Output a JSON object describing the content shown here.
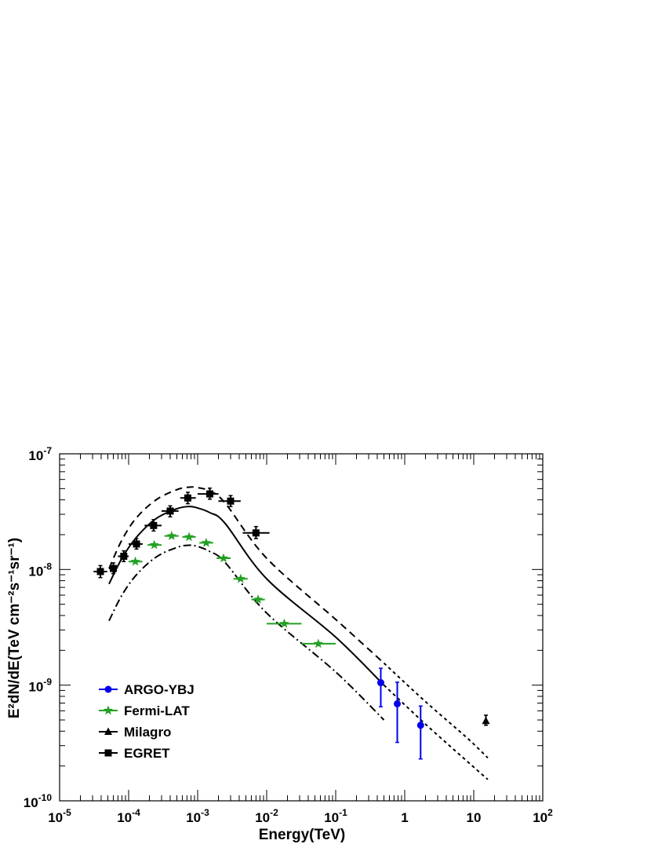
{
  "chart_data": {
    "type": "scatter",
    "xlabel": "Energy(TeV)",
    "ylabel": "E²dN/dE(TeV cm⁻²s⁻¹sr⁻¹)",
    "x_scale": "log",
    "y_scale": "log",
    "xlim": [
      1e-05,
      100
    ],
    "ylim": [
      1e-10,
      1e-07
    ],
    "x_tick_labels": [
      {
        "value": 1e-05,
        "base": "10",
        "exp": "-5"
      },
      {
        "value": 0.0001,
        "base": "10",
        "exp": "-4"
      },
      {
        "value": 0.001,
        "base": "10",
        "exp": "-3"
      },
      {
        "value": 0.01,
        "base": "10",
        "exp": "-2"
      },
      {
        "value": 0.1,
        "base": "10",
        "exp": "-1"
      },
      {
        "value": 1,
        "base": "1",
        "exp": ""
      },
      {
        "value": 10,
        "base": "10",
        "exp": ""
      },
      {
        "value": 100,
        "base": "10",
        "exp": "2"
      }
    ],
    "y_tick_labels": [
      {
        "value": 1e-10,
        "base": "10",
        "exp": "-10"
      },
      {
        "value": 1e-09,
        "base": "10",
        "exp": "-9"
      },
      {
        "value": 1e-08,
        "base": "10",
        "exp": "-8"
      },
      {
        "value": 1e-07,
        "base": "10",
        "exp": "-7"
      }
    ],
    "grid": false,
    "legend_position": "bottom-left",
    "series": [
      {
        "name": "ARGO-YBJ",
        "marker": "circle",
        "color": "#0000ee",
        "points": [
          {
            "x": 0.45,
            "y": 1.05e-09,
            "ylo": 6.5e-10,
            "yhi": 1.4e-09
          },
          {
            "x": 0.78,
            "y": 6.9e-10,
            "ylo": 3.2e-10,
            "yhi": 1.06e-09
          },
          {
            "x": 1.7,
            "y": 4.5e-10,
            "ylo": 2.3e-10,
            "yhi": 6.6e-10
          }
        ]
      },
      {
        "name": "Fermi-LAT",
        "marker": "star",
        "color": "#22a022",
        "points": [
          {
            "x": 0.000125,
            "y": 1.17e-08,
            "xlo": 0.0001,
            "xhi": 0.000158
          },
          {
            "x": 0.000235,
            "y": 1.63e-08,
            "xlo": 0.000188,
            "xhi": 0.0003
          },
          {
            "x": 0.00042,
            "y": 1.95e-08,
            "xlo": 0.00033,
            "xhi": 0.00053
          },
          {
            "x": 0.00075,
            "y": 1.91e-08,
            "xlo": 0.0006,
            "xhi": 0.00094
          },
          {
            "x": 0.00133,
            "y": 1.7e-08,
            "xlo": 0.00106,
            "xhi": 0.00168
          },
          {
            "x": 0.00237,
            "y": 1.25e-08,
            "xlo": 0.00188,
            "xhi": 0.003
          },
          {
            "x": 0.0042,
            "y": 8.3e-09,
            "xlo": 0.0033,
            "xhi": 0.0053
          },
          {
            "x": 0.0075,
            "y": 5.5e-09,
            "xlo": 0.006,
            "xhi": 0.0094
          },
          {
            "x": 0.018,
            "y": 3.4e-09,
            "xlo": 0.01,
            "xhi": 0.032
          },
          {
            "x": 0.056,
            "y": 2.28e-09,
            "xlo": 0.032,
            "xhi": 0.1
          }
        ]
      },
      {
        "name": "Milagro",
        "marker": "triangle",
        "color": "#000000",
        "points": [
          {
            "x": 15,
            "y": 4.9e-10,
            "ylo": 4.5e-10,
            "yhi": 5.5e-10
          }
        ]
      },
      {
        "name": "EGRET",
        "marker": "square",
        "color": "#000000",
        "points": [
          {
            "x": 3.9e-05,
            "y": 9.6e-09,
            "xlo": 3.1e-05,
            "xhi": 4.9e-05,
            "ylo": 8.5e-09,
            "yhi": 1.08e-08
          },
          {
            "x": 6e-05,
            "y": 1.02e-08,
            "xlo": 5.2e-05,
            "xhi": 6.8e-05,
            "ylo": 9.2e-09,
            "yhi": 1.14e-08
          },
          {
            "x": 8.5e-05,
            "y": 1.3e-08,
            "xlo": 7e-05,
            "xhi": 0.0001,
            "ylo": 1.17e-08,
            "yhi": 1.45e-08
          },
          {
            "x": 0.00013,
            "y": 1.66e-08,
            "xlo": 0.0001,
            "xhi": 0.00016,
            "ylo": 1.5e-08,
            "yhi": 1.85e-08
          },
          {
            "x": 0.00023,
            "y": 2.4e-08,
            "xlo": 0.00017,
            "xhi": 0.0003,
            "ylo": 2.15e-08,
            "yhi": 2.7e-08
          },
          {
            "x": 0.0004,
            "y": 3.2e-08,
            "xlo": 0.0003,
            "xhi": 0.00053,
            "ylo": 2.85e-08,
            "yhi": 3.55e-08
          },
          {
            "x": 0.00072,
            "y": 4.15e-08,
            "xlo": 0.00056,
            "xhi": 0.00094,
            "ylo": 3.7e-08,
            "yhi": 4.65e-08
          },
          {
            "x": 0.0015,
            "y": 4.5e-08,
            "xlo": 0.001,
            "xhi": 0.002,
            "ylo": 4.05e-08,
            "yhi": 5.05e-08
          },
          {
            "x": 0.003,
            "y": 3.9e-08,
            "xlo": 0.002,
            "xhi": 0.0042,
            "ylo": 3.5e-08,
            "yhi": 4.35e-08
          },
          {
            "x": 0.007,
            "y": 2.07e-08,
            "xlo": 0.0045,
            "xhi": 0.011,
            "ylo": 1.85e-08,
            "yhi": 2.35e-08
          }
        ]
      }
    ],
    "curves": [
      {
        "style": "dashed",
        "points": [
          [
            5.2e-05,
            1.02e-08
          ],
          [
            8e-05,
            1.8e-08
          ],
          [
            0.00013,
            2.8e-08
          ],
          [
            0.00025,
            4e-08
          ],
          [
            0.0005,
            4.9e-08
          ],
          [
            0.00075,
            5.15e-08
          ],
          [
            0.001,
            5.1e-08
          ],
          [
            0.0015,
            4.75e-08
          ],
          [
            0.0025,
            3.75e-08
          ],
          [
            0.01,
            1.25e-08
          ],
          [
            0.1,
            3.7e-09
          ],
          [
            0.5,
            1.55e-09
          ]
        ]
      },
      {
        "style": "dotted",
        "points": [
          [
            0.5,
            1.55e-09
          ],
          [
            2,
            7.2e-10
          ],
          [
            8,
            3.5e-10
          ],
          [
            16,
            2.35e-10
          ]
        ]
      },
      {
        "style": "solid",
        "points": [
          [
            5.2e-05,
            7.5e-09
          ],
          [
            8e-05,
            1.25e-08
          ],
          [
            0.00013,
            1.9e-08
          ],
          [
            0.00025,
            2.75e-08
          ],
          [
            0.0005,
            3.35e-08
          ],
          [
            0.00075,
            3.5e-08
          ],
          [
            0.001,
            3.4e-08
          ],
          [
            0.0015,
            3.1e-08
          ],
          [
            0.0025,
            2.5e-08
          ],
          [
            0.01,
            8.3e-09
          ],
          [
            0.1,
            2.6e-09
          ],
          [
            0.5,
            1e-09
          ]
        ]
      },
      {
        "style": "dotted",
        "points": [
          [
            0.5,
            1e-09
          ],
          [
            2,
            4.6e-10
          ],
          [
            8,
            2.2e-10
          ],
          [
            16,
            1.53e-10
          ]
        ]
      },
      {
        "style": "dashdot",
        "points": [
          [
            5.2e-05,
            3.6e-09
          ],
          [
            8e-05,
            6e-09
          ],
          [
            0.00013,
            9e-09
          ],
          [
            0.00025,
            1.28e-08
          ],
          [
            0.0005,
            1.55e-08
          ],
          [
            0.00075,
            1.62e-08
          ],
          [
            0.001,
            1.58e-08
          ],
          [
            0.0015,
            1.43e-08
          ],
          [
            0.0025,
            1.15e-08
          ],
          [
            0.01,
            4.2e-09
          ],
          [
            0.1,
            1.3e-09
          ],
          [
            0.5,
            5e-10
          ]
        ]
      }
    ]
  }
}
